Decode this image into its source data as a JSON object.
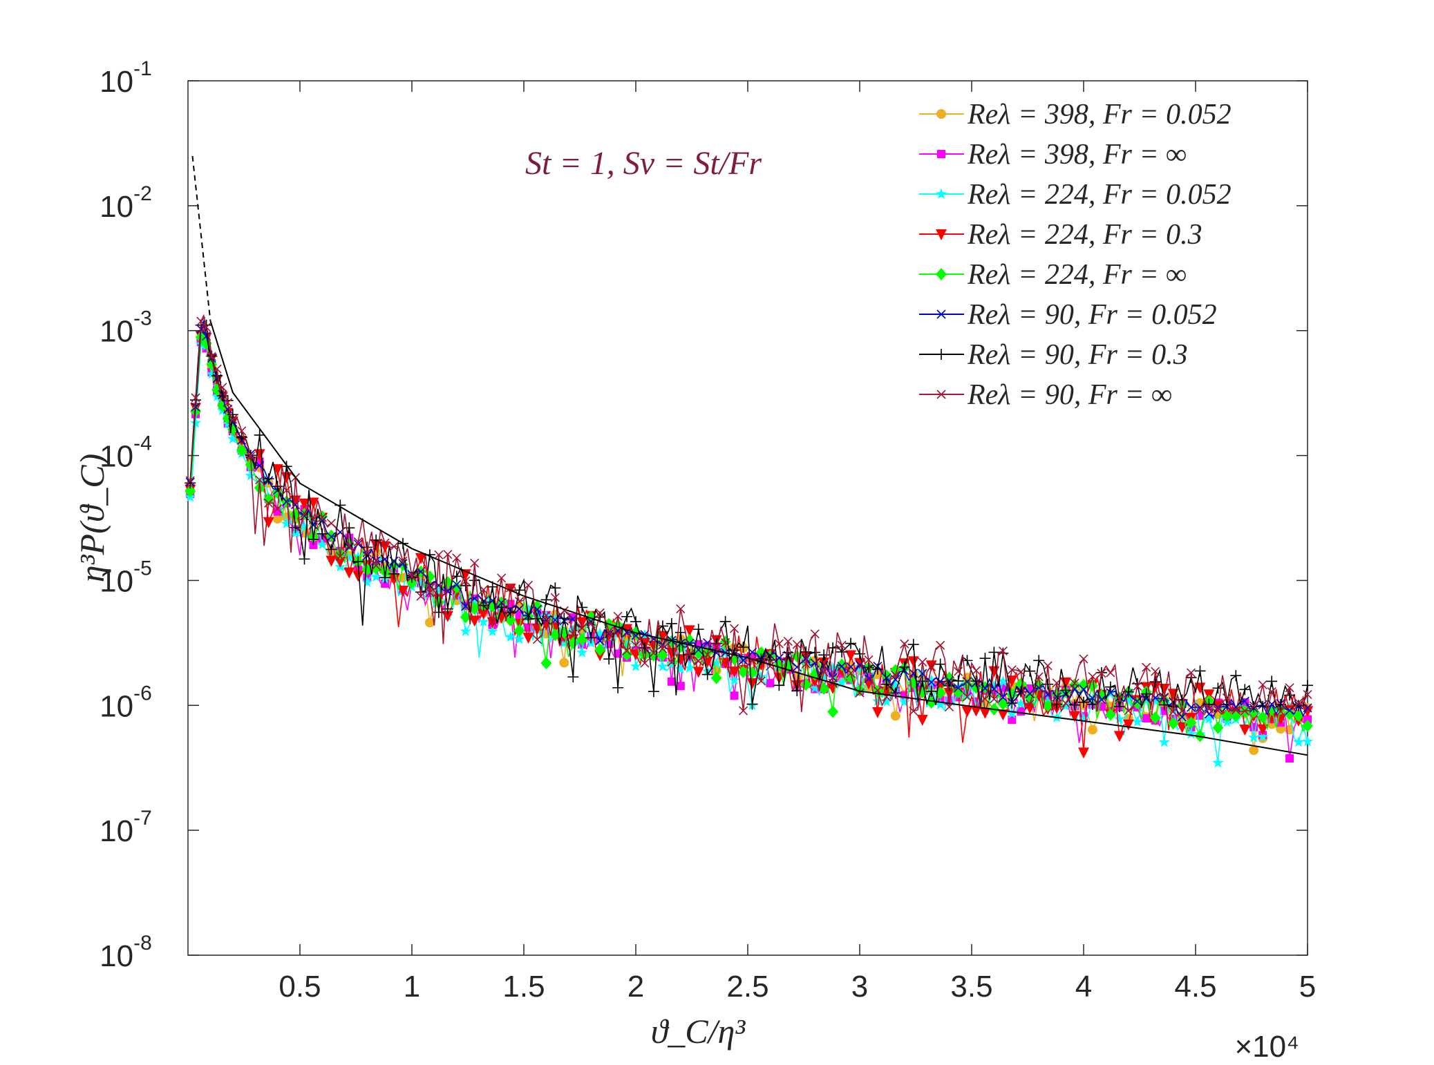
{
  "chart_data": {
    "type": "line",
    "y_scale": "log",
    "xlabel": "ϑ_C/η³",
    "ylabel": "η³P(ϑ_C)",
    "x_multiplier": "×10⁴",
    "xlim": [
      0,
      5
    ],
    "ylim_exponents": [
      -8,
      -1
    ],
    "x_ticks": [
      "0.5",
      "1",
      "1.5",
      "2",
      "2.5",
      "3",
      "3.5",
      "4",
      "4.5",
      "5"
    ],
    "y_ticks": [
      {
        "base": "10",
        "exp": "-1"
      },
      {
        "base": "10",
        "exp": "-2"
      },
      {
        "base": "10",
        "exp": "-3"
      },
      {
        "base": "10",
        "exp": "-4"
      },
      {
        "base": "10",
        "exp": "-5"
      },
      {
        "base": "10",
        "exp": "-6"
      },
      {
        "base": "10",
        "exp": "-7"
      },
      {
        "base": "10",
        "exp": "-8"
      }
    ],
    "annotation": "St = 1, Sv = St/Fr",
    "legend_position": "top-right",
    "series": [
      {
        "name": "Reλ = 398, Fr = 0.052",
        "Re": "398",
        "Fr": "0.052",
        "color": "#EDB120",
        "marker": "circle",
        "base_scale": 1.0,
        "noise": 0.45,
        "seed": 11
      },
      {
        "name": "Reλ = 398, Fr = ∞",
        "Re": "398",
        "Fr": "∞",
        "color": "#FF00FF",
        "marker": "square",
        "base_scale": 0.95,
        "noise": 0.5,
        "seed": 23
      },
      {
        "name": "Reλ = 224, Fr = 0.052",
        "Re": "224",
        "Fr": "0.052",
        "color": "#00FFFF",
        "marker": "star",
        "base_scale": 0.9,
        "noise": 0.6,
        "seed": 37
      },
      {
        "name": "Reλ = 224, Fr = 0.3",
        "Re": "224",
        "Fr": "0.3",
        "color": "#FF0000",
        "marker": "triangle-down",
        "base_scale": 1.05,
        "noise": 0.8,
        "seed": 41
      },
      {
        "name": "Reλ = 224, Fr = ∞",
        "Re": "224",
        "Fr": "∞",
        "color": "#00FF00",
        "marker": "diamond",
        "base_scale": 1.0,
        "noise": 0.55,
        "seed": 53
      },
      {
        "name": "Reλ = 90, Fr = 0.052",
        "Re": "90",
        "Fr": "0.052",
        "color": "#0000CC",
        "marker": "x",
        "base_scale": 1.15,
        "noise": 0.2,
        "seed": 67
      },
      {
        "name": "Reλ = 90, Fr = 0.3",
        "Re": "90",
        "Fr": "0.3",
        "color": "#000000",
        "marker": "plus",
        "base_scale": 1.2,
        "noise": 1.0,
        "seed": 71,
        "floor": 1e-06
      },
      {
        "name": "Reλ = 90, Fr = ∞",
        "Re": "90",
        "Fr": "∞",
        "color": "#A2142F",
        "marker": "x",
        "base_scale": 1.25,
        "noise": 1.0,
        "seed": 83,
        "floor": 9e-07
      }
    ],
    "reference_curve": {
      "style": "black solid, dashed near origin",
      "points": [
        {
          "x": 0.02,
          "y": 0.025
        },
        {
          "x": 0.1,
          "y": 0.0012
        },
        {
          "x": 0.2,
          "y": 0.00032
        },
        {
          "x": 0.5,
          "y": 6e-05
        },
        {
          "x": 1.0,
          "y": 1.8e-05
        },
        {
          "x": 1.5,
          "y": 7.5e-06
        },
        {
          "x": 2.0,
          "y": 3.8e-06
        },
        {
          "x": 2.5,
          "y": 2.4e-06
        },
        {
          "x": 3.0,
          "y": 1.3e-06
        },
        {
          "x": 3.5,
          "y": 9.8e-07
        },
        {
          "x": 4.0,
          "y": 7.5e-07
        },
        {
          "x": 4.5,
          "y": 5.7e-07
        },
        {
          "x": 5.0,
          "y": 4e-07
        }
      ]
    }
  }
}
